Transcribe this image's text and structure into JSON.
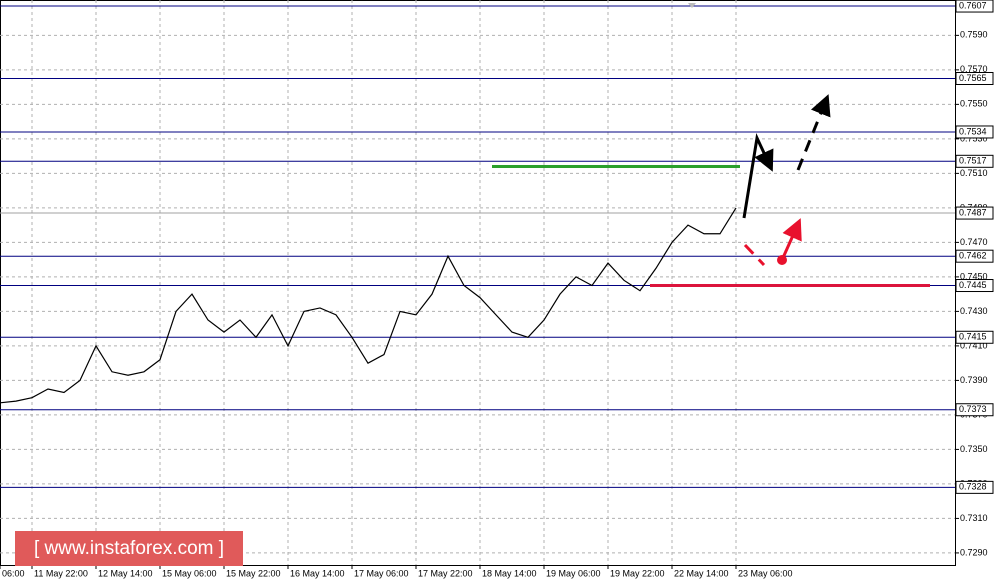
{
  "chart_data": {
    "type": "line",
    "color": "#000000",
    "categories": [
      "06:00",
      null,
      "11 May 22:00",
      null,
      null,
      null,
      "12 May 14:00",
      null,
      null,
      null,
      "15 May 06:00",
      null,
      null,
      null,
      "15 May 22:00",
      null,
      null,
      null,
      "16 May 14:00",
      null,
      null,
      null,
      "17 May 06:00",
      null,
      null,
      null,
      "17 May 22:00",
      null,
      null,
      null,
      "18 May 14:00",
      null,
      null,
      null,
      "19 May 06:00",
      null,
      null,
      null,
      "19 May 22:00",
      null,
      null,
      null,
      "22 May 14:00",
      null,
      null,
      null,
      "23 May 06:00"
    ],
    "values": [
      0.7377,
      0.7378,
      0.738,
      0.7385,
      0.7383,
      0.739,
      0.741,
      0.7395,
      0.7393,
      0.7395,
      0.7402,
      0.743,
      0.744,
      0.7425,
      0.7418,
      0.7425,
      0.7415,
      0.7428,
      0.741,
      0.743,
      0.7432,
      0.7428,
      0.7415,
      0.74,
      0.7405,
      0.743,
      0.7428,
      0.744,
      0.7462,
      0.7445,
      0.7438,
      0.7428,
      0.7418,
      0.7415,
      0.7425,
      0.744,
      0.745,
      0.7445,
      0.7458,
      0.7448,
      0.7442,
      0.7455,
      0.747,
      0.748,
      0.7475,
      0.7475,
      0.749
    ],
    "ylim": [
      0.7283,
      0.76105
    ],
    "yticks": [
      {
        "value": 0.759,
        "label": "0.7590"
      },
      {
        "value": 0.757,
        "label": "0.7570"
      },
      {
        "value": 0.755,
        "label": "0.7550"
      },
      {
        "value": 0.753,
        "label": "0.7530"
      },
      {
        "value": 0.751,
        "label": "0.7510"
      },
      {
        "value": 0.749,
        "label": "0.7490"
      },
      {
        "value": 0.747,
        "label": "0.7470"
      },
      {
        "value": 0.745,
        "label": "0.7450"
      },
      {
        "value": 0.743,
        "label": "0.7430"
      },
      {
        "value": 0.741,
        "label": "0.7410"
      },
      {
        "value": 0.739,
        "label": "0.7390"
      },
      {
        "value": 0.737,
        "label": "0.7370"
      },
      {
        "value": 0.735,
        "label": "0.7350"
      },
      {
        "value": 0.733,
        "label": "0.7330"
      },
      {
        "value": 0.731,
        "label": "0.7310"
      },
      {
        "value": 0.729,
        "label": "0.7290"
      }
    ],
    "grid": true,
    "levels": [
      0.7607,
      0.7565,
      0.7534,
      0.7517,
      0.7462,
      0.7445,
      0.7415,
      0.7373,
      0.7328
    ],
    "level_color": "#000080",
    "price_line": 0.7487,
    "price_line_color": "#a0a0a0",
    "target_line": {
      "value": 0.7514,
      "color": "#2ca02c"
    },
    "support_line": {
      "value": 0.7445,
      "color": "#dc143c"
    },
    "watermark": "[ www.instaforex.com ]"
  }
}
